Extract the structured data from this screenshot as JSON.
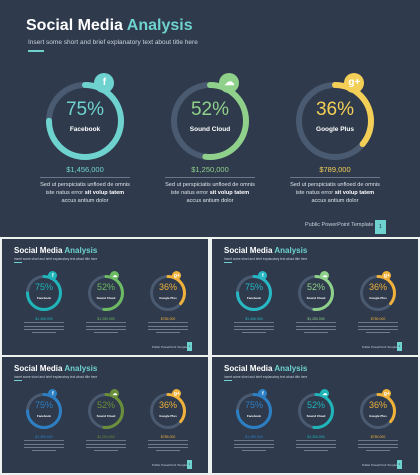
{
  "slides": [
    {
      "title_main": "Social Media ",
      "title_accent": "Analysis",
      "subtitle": "Insert some short and brief explanatory text about title here",
      "footer": "Public PowerPoint Template",
      "page_number": "1",
      "ring_color": "#6ed3cf",
      "rings": [
        {
          "percent": 75,
          "percent_label": "75%",
          "label": "Facebook",
          "amount": "$1,456,000",
          "color": "#6ed3cf",
          "icon": "facebook-icon",
          "icon_glyph": "f",
          "desc_line1": "Sed ut perspiciatis unfloed de omnis",
          "desc_line2_a": "iste natus error ",
          "desc_line2_bold": "sit volup tatem",
          "desc_line3": "accus antium dolor"
        },
        {
          "percent": 52,
          "percent_label": "52%",
          "label": "Sound Cloud",
          "amount": "$1,250,000",
          "color": "#8fd18a",
          "icon": "soundcloud-icon",
          "icon_glyph": "☁",
          "desc_line1": "Sed ut perspiciatis unfloed de omnis",
          "desc_line2_a": "iste natus error ",
          "desc_line2_bold": "sit volup tatem",
          "desc_line3": "accus antium dolor"
        },
        {
          "percent": 36,
          "percent_label": "36%",
          "label": "Google Plus",
          "amount": "$789,000",
          "color": "#f4cf57",
          "icon": "google-plus-icon",
          "icon_glyph": "g+",
          "desc_line1": "Sed ut perspiciatis unfloed de omnis",
          "desc_line2_a": "iste natus error ",
          "desc_line2_bold": "sit volup tatem",
          "desc_line3": "accus antium dolor"
        }
      ]
    },
    {
      "title_main": "Social Media ",
      "title_accent": "Analysis",
      "subtitle": "Insert some short and brief explanatory text about title here",
      "footer": "Public PowerPoint Template",
      "page_number": "1",
      "rings": [
        {
          "percent": 75,
          "percent_label": "75%",
          "label": "Facebook",
          "amount": "$1,456,000",
          "color": "#1fb5b9",
          "icon": "facebook-icon",
          "icon_glyph": "f"
        },
        {
          "percent": 52,
          "percent_label": "52%",
          "label": "Sound Cloud",
          "amount": "$1,250,000",
          "color": "#6dbb63",
          "icon": "soundcloud-icon",
          "icon_glyph": "☁"
        },
        {
          "percent": 36,
          "percent_label": "36%",
          "label": "Google Plus",
          "amount": "$789,000",
          "color": "#f0b23a",
          "icon": "google-plus-icon",
          "icon_glyph": "g+"
        }
      ]
    },
    {
      "title_main": "Social Media ",
      "title_accent": "Analysis",
      "subtitle": "Insert some short and brief explanatory text about title here",
      "footer": "Public PowerPoint Template",
      "page_number": "1",
      "rings": [
        {
          "percent": 75,
          "percent_label": "75%",
          "label": "Facebook",
          "amount": "$1,456,000",
          "color": "#27b8c4",
          "icon": "facebook-icon",
          "icon_glyph": "f"
        },
        {
          "percent": 52,
          "percent_label": "52%",
          "label": "Sound Cloud",
          "amount": "$1,250,000",
          "color": "#8fd18a",
          "icon": "soundcloud-icon",
          "icon_glyph": "☁"
        },
        {
          "percent": 36,
          "percent_label": "36%",
          "label": "Google Plus",
          "amount": "$789,000",
          "color": "#f0b23a",
          "icon": "google-plus-icon",
          "icon_glyph": "g+"
        }
      ]
    },
    {
      "title_main": "Social Media ",
      "title_accent": "Analysis",
      "subtitle": "Insert some short and brief explanatory text about title here",
      "footer": "Public PowerPoint Template",
      "page_number": "1",
      "rings": [
        {
          "percent": 75,
          "percent_label": "75%",
          "label": "Facebook",
          "amount": "$1,456,000",
          "color": "#2d7fc4",
          "icon": "facebook-icon",
          "icon_glyph": "f"
        },
        {
          "percent": 52,
          "percent_label": "52%",
          "label": "Sound Cloud",
          "amount": "$1,250,000",
          "color": "#6a8f3a",
          "icon": "soundcloud-icon",
          "icon_glyph": "☁"
        },
        {
          "percent": 36,
          "percent_label": "36%",
          "label": "Google Plus",
          "amount": "$789,000",
          "color": "#f0b23a",
          "icon": "google-plus-icon",
          "icon_glyph": "g+"
        }
      ]
    },
    {
      "title_main": "Social Media ",
      "title_accent": "Analysis",
      "subtitle": "Insert some short and brief explanatory text about title here",
      "footer": "Public PowerPoint Template",
      "page_number": "1",
      "rings": [
        {
          "percent": 75,
          "percent_label": "75%",
          "label": "Facebook",
          "amount": "$1,456,000",
          "color": "#2d7fc4",
          "icon": "facebook-icon",
          "icon_glyph": "f"
        },
        {
          "percent": 52,
          "percent_label": "52%",
          "label": "Sound Cloud",
          "amount": "$1,250,000",
          "color": "#1fb5b9",
          "icon": "soundcloud-icon",
          "icon_glyph": "☁"
        },
        {
          "percent": 36,
          "percent_label": "36%",
          "label": "Google Plus",
          "amount": "$789,000",
          "color": "#f0b23a",
          "icon": "google-plus-icon",
          "icon_glyph": "g+"
        }
      ]
    }
  ]
}
